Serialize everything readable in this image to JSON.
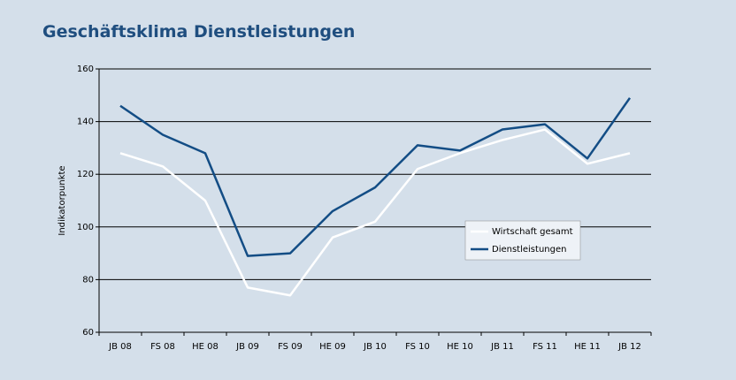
{
  "chart_data": {
    "type": "line",
    "title": "Geschäftsklima Dienstleistungen",
    "y_label": "Indikatorpunkte",
    "categories": [
      "JB 08",
      "FS 08",
      "HE 08",
      "JB 09",
      "FS 09",
      "HE 09",
      "JB 10",
      "FS 10",
      "HE 10",
      "JB 11",
      "FS 11",
      "HE 11",
      "JB 12"
    ],
    "series": [
      {
        "name": "Wirtschaft gesamt",
        "color": "#ffffff",
        "values": [
          128,
          123,
          110,
          77,
          74,
          96,
          102,
          122,
          128,
          133,
          137,
          124,
          128
        ]
      },
      {
        "name": "Dienstleistungen",
        "color": "#134d85",
        "values": [
          146,
          135,
          128,
          89,
          90,
          106,
          115,
          131,
          129,
          137,
          139,
          126,
          149
        ]
      }
    ],
    "ylim": [
      60,
      160
    ],
    "yticks": [
      60,
      80,
      100,
      120,
      140,
      160
    ],
    "grid": true
  }
}
